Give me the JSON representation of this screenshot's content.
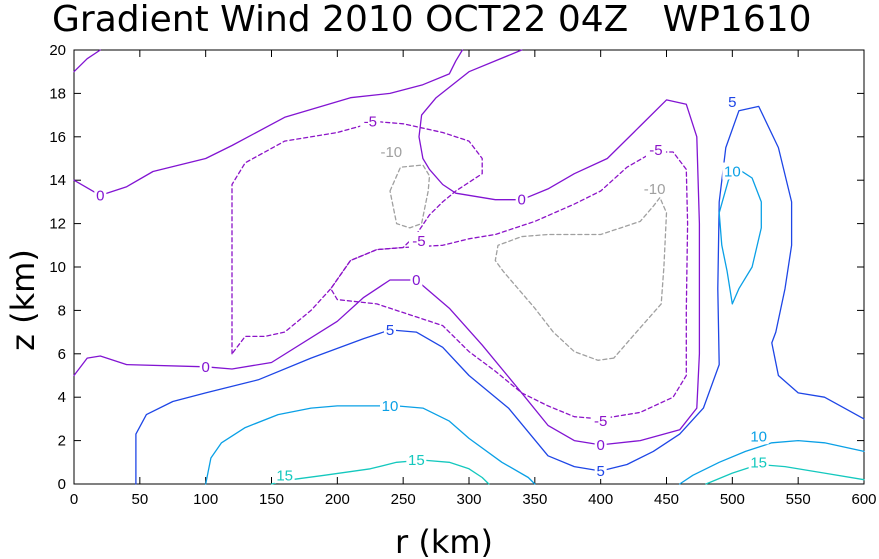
{
  "chart_data": {
    "type": "contour",
    "title": "Gradient Wind 2010 OCT22 04Z   WP1610",
    "xlabel": "r (km)",
    "ylabel": "z (km)",
    "xlim": [
      0,
      600
    ],
    "ylim": [
      0,
      20
    ],
    "xticks": [
      0,
      50,
      100,
      150,
      200,
      250,
      300,
      350,
      400,
      450,
      500,
      550,
      600
    ],
    "yticks": [
      0,
      2,
      4,
      6,
      8,
      10,
      12,
      14,
      16,
      18,
      20
    ],
    "colors": {
      "neg10": "#a0a0a0",
      "neg5": "#8c14c8",
      "zero": "#8214d2",
      "pos5": "#1e46e6",
      "pos10": "#0aa0e6",
      "pos15": "#14c8be"
    },
    "contours": [
      {
        "id": "zero-top-left",
        "level": 0,
        "style": "solid",
        "color": "#8214d2",
        "points": [
          [
            0,
            19
          ],
          [
            10,
            19.6
          ],
          [
            20,
            20
          ]
        ]
      },
      {
        "id": "zero-upper-left",
        "level": 0,
        "style": "solid",
        "color": "#8214d2",
        "points": [
          [
            0,
            14
          ],
          [
            20,
            13.3
          ],
          [
            40,
            13.7
          ],
          [
            60,
            14.4
          ],
          [
            100,
            15
          ],
          [
            120,
            15.6
          ],
          [
            160,
            16.9
          ],
          [
            210,
            17.8
          ],
          [
            240,
            18
          ],
          [
            265,
            18.4
          ],
          [
            285,
            18.9
          ],
          [
            290,
            19.5
          ],
          [
            295,
            20
          ]
        ]
      },
      {
        "id": "zero-lower",
        "level": 0,
        "style": "solid",
        "color": "#8214d2",
        "points": [
          [
            0,
            5
          ],
          [
            10,
            5.8
          ],
          [
            20,
            5.9
          ],
          [
            40,
            5.5
          ],
          [
            100,
            5.4
          ],
          [
            120,
            5.3
          ],
          [
            150,
            5.6
          ],
          [
            200,
            7.5
          ],
          [
            220,
            8.6
          ],
          [
            240,
            9.4
          ],
          [
            260,
            9.4
          ],
          [
            285,
            8.1
          ],
          [
            310,
            6.4
          ],
          [
            340,
            4.2
          ],
          [
            360,
            2.7
          ],
          [
            380,
            2
          ],
          [
            400,
            1.8
          ],
          [
            430,
            2
          ],
          [
            460,
            2.5
          ],
          [
            473,
            3.5
          ],
          [
            475,
            6
          ],
          [
            475,
            12
          ],
          [
            473,
            16
          ],
          [
            465,
            17.5
          ],
          [
            450,
            17.7
          ],
          [
            430,
            16.5
          ],
          [
            405,
            15
          ],
          [
            380,
            14.3
          ],
          [
            360,
            13.6
          ],
          [
            340,
            13.1
          ],
          [
            320,
            13.1
          ],
          [
            290,
            13.4
          ],
          [
            280,
            13.8
          ],
          [
            270,
            14.5
          ],
          [
            265,
            15
          ],
          [
            262,
            16
          ],
          [
            264,
            17
          ],
          [
            275,
            17.8
          ],
          [
            300,
            19
          ],
          [
            320,
            19.5
          ],
          [
            340,
            20
          ]
        ]
      },
      {
        "id": "neg5-upper",
        "level": -5,
        "style": "dashed",
        "color": "#8c14c8",
        "points": [
          [
            120,
            6
          ],
          [
            120,
            13.8
          ],
          [
            130,
            14.8
          ],
          [
            160,
            15.8
          ],
          [
            200,
            16.2
          ],
          [
            230,
            16.7
          ],
          [
            250,
            16.6
          ],
          [
            280,
            16.2
          ],
          [
            300,
            15.8
          ],
          [
            310,
            15
          ],
          [
            310,
            14.3
          ],
          [
            290,
            13.5
          ],
          [
            280,
            13
          ],
          [
            270,
            12.4
          ],
          [
            260,
            11.5
          ],
          [
            250,
            10.9
          ],
          [
            230,
            10.8
          ],
          [
            210,
            10.3
          ],
          [
            195,
            9
          ],
          [
            180,
            8
          ],
          [
            160,
            7
          ],
          [
            145,
            6.8
          ],
          [
            130,
            6.8
          ],
          [
            120,
            6
          ]
        ]
      },
      {
        "id": "neg5-right",
        "level": -5,
        "style": "dashed",
        "color": "#8c14c8",
        "points": [
          [
            400,
            3
          ],
          [
            410,
            3.1
          ],
          [
            430,
            3.3
          ],
          [
            455,
            4
          ],
          [
            465,
            5
          ],
          [
            465,
            8
          ],
          [
            466,
            12
          ],
          [
            465,
            14.5
          ],
          [
            455,
            15.3
          ],
          [
            440,
            15.3
          ],
          [
            420,
            14.6
          ],
          [
            400,
            13.5
          ],
          [
            380,
            12.9
          ],
          [
            350,
            12.1
          ],
          [
            320,
            11.5
          ],
          [
            300,
            11.3
          ],
          [
            280,
            11
          ],
          [
            250,
            10.9
          ],
          [
            230,
            10.8
          ],
          [
            210,
            10.3
          ],
          [
            195,
            9
          ],
          [
            200,
            8.5
          ],
          [
            230,
            8.3
          ],
          [
            280,
            7.3
          ],
          [
            300,
            6.1
          ],
          [
            320,
            5.2
          ],
          [
            340,
            4.2
          ],
          [
            360,
            3.6
          ],
          [
            380,
            3.1
          ],
          [
            400,
            3
          ]
        ]
      },
      {
        "id": "neg10-left",
        "level": -10,
        "style": "dashed",
        "color": "#a0a0a0",
        "points": [
          [
            240,
            13.5
          ],
          [
            248,
            14.6
          ],
          [
            265,
            14.7
          ],
          [
            270,
            14.2
          ],
          [
            269,
            13.5
          ],
          [
            264,
            12
          ],
          [
            255,
            11.8
          ],
          [
            245,
            12
          ],
          [
            240,
            13.5
          ]
        ]
      },
      {
        "id": "neg10-right",
        "level": -10,
        "style": "dashed",
        "color": "#a0a0a0",
        "points": [
          [
            410,
            5.8
          ],
          [
            398,
            5.7
          ],
          [
            380,
            6.1
          ],
          [
            364,
            7
          ],
          [
            350,
            8.1
          ],
          [
            326,
            9.8
          ],
          [
            320,
            10.3
          ],
          [
            322,
            11
          ],
          [
            340,
            11.4
          ],
          [
            360,
            11.5
          ],
          [
            400,
            11.5
          ],
          [
            430,
            12.1
          ],
          [
            440,
            12.8
          ],
          [
            445,
            13.2
          ],
          [
            450,
            12.5
          ],
          [
            448,
            10
          ],
          [
            446,
            8.3
          ],
          [
            430,
            7.2
          ],
          [
            420,
            6.5
          ],
          [
            410,
            5.8
          ]
        ]
      },
      {
        "id": "pos5-lower",
        "level": 5,
        "style": "solid",
        "color": "#1e46e6",
        "points": [
          [
            47,
            0
          ],
          [
            47,
            2.3
          ],
          [
            55,
            3.2
          ],
          [
            75,
            3.8
          ],
          [
            100,
            4.2
          ],
          [
            140,
            4.8
          ],
          [
            180,
            5.8
          ],
          [
            220,
            6.7
          ],
          [
            240,
            7.1
          ],
          [
            260,
            7
          ],
          [
            280,
            6.3
          ],
          [
            300,
            5
          ],
          [
            330,
            3.5
          ],
          [
            360,
            1.3
          ],
          [
            380,
            0.8
          ],
          [
            400,
            0.6
          ],
          [
            420,
            0.9
          ],
          [
            440,
            1.5
          ],
          [
            460,
            2.3
          ],
          [
            478,
            3.5
          ],
          [
            490,
            5.5
          ],
          [
            489,
            9
          ],
          [
            490,
            13
          ],
          [
            495,
            15.5
          ],
          [
            505,
            17.2
          ],
          [
            520,
            17.4
          ],
          [
            535,
            15.5
          ],
          [
            545,
            13
          ],
          [
            545,
            11
          ],
          [
            540,
            9
          ],
          [
            533,
            7
          ],
          [
            530,
            6.5
          ],
          [
            535,
            5
          ],
          [
            550,
            4.2
          ],
          [
            570,
            4
          ],
          [
            585,
            3.5
          ],
          [
            600,
            3
          ]
        ]
      },
      {
        "id": "pos10-lower",
        "level": 10,
        "style": "solid",
        "color": "#0aa0e6",
        "points": [
          [
            100,
            0
          ],
          [
            104,
            1.2
          ],
          [
            112,
            1.9
          ],
          [
            130,
            2.6
          ],
          [
            155,
            3.2
          ],
          [
            180,
            3.5
          ],
          [
            200,
            3.6
          ],
          [
            220,
            3.6
          ],
          [
            245,
            3.6
          ],
          [
            265,
            3.5
          ],
          [
            285,
            2.9
          ],
          [
            300,
            2.1
          ],
          [
            325,
            1
          ],
          [
            345,
            0.3
          ],
          [
            350,
            0
          ]
        ]
      },
      {
        "id": "pos10-right-top",
        "level": 10,
        "style": "solid",
        "color": "#0aa0e6",
        "points": [
          [
            500,
            8.3
          ],
          [
            505,
            9
          ],
          [
            515,
            10
          ],
          [
            522,
            11.8
          ],
          [
            522,
            13
          ],
          [
            515,
            14.1
          ],
          [
            505,
            14.5
          ],
          [
            497,
            14
          ],
          [
            490,
            12.5
          ],
          [
            492,
            11
          ],
          [
            496,
            9.8
          ],
          [
            500,
            8.3
          ]
        ]
      },
      {
        "id": "pos10-right-bottom",
        "level": 10,
        "style": "solid",
        "color": "#0aa0e6",
        "points": [
          [
            460,
            0
          ],
          [
            470,
            0.4
          ],
          [
            490,
            1
          ],
          [
            510,
            1.5
          ],
          [
            530,
            1.9
          ],
          [
            550,
            2
          ],
          [
            570,
            1.9
          ],
          [
            600,
            1.5
          ]
        ]
      },
      {
        "id": "pos15-lower",
        "level": 15,
        "style": "solid",
        "color": "#14c8be",
        "points": [
          [
            150,
            0
          ],
          [
            165,
            0.2
          ],
          [
            190,
            0.4
          ],
          [
            225,
            0.7
          ],
          [
            245,
            1
          ],
          [
            265,
            1.1
          ],
          [
            285,
            1
          ],
          [
            300,
            0.7
          ],
          [
            310,
            0.3
          ],
          [
            315,
            0
          ]
        ]
      },
      {
        "id": "pos15-right",
        "level": 15,
        "style": "solid",
        "color": "#14c8be",
        "points": [
          [
            480,
            0
          ],
          [
            500,
            0.5
          ],
          [
            520,
            0.9
          ],
          [
            540,
            0.8
          ],
          [
            570,
            0.5
          ],
          [
            600,
            0.2
          ]
        ]
      }
    ],
    "contour_labels": [
      {
        "text": "0",
        "x": 20,
        "y": 13.3,
        "color": "#8214d2"
      },
      {
        "text": "0",
        "x": 100,
        "y": 5.4,
        "color": "#8214d2"
      },
      {
        "text": "0",
        "x": 260,
        "y": 9.4,
        "color": "#8214d2"
      },
      {
        "text": "0",
        "x": 340,
        "y": 13.1,
        "color": "#8214d2"
      },
      {
        "text": "0",
        "x": 400,
        "y": 1.8,
        "color": "#8214d2"
      },
      {
        "text": "-5",
        "x": 225,
        "y": 16.7,
        "color": "#8c14c8"
      },
      {
        "text": "-5",
        "x": 262,
        "y": 11.2,
        "color": "#8c14c8"
      },
      {
        "text": "-5",
        "x": 442,
        "y": 15.4,
        "color": "#8c14c8"
      },
      {
        "text": "-5",
        "x": 400,
        "y": 2.9,
        "color": "#8c14c8"
      },
      {
        "text": "-10",
        "x": 241,
        "y": 15.3,
        "color": "#a0a0a0"
      },
      {
        "text": "-10",
        "x": 441,
        "y": 13.6,
        "color": "#a0a0a0"
      },
      {
        "text": "5",
        "x": 240,
        "y": 7.1,
        "color": "#1e46e6"
      },
      {
        "text": "5",
        "x": 400,
        "y": 0.6,
        "color": "#1e46e6"
      },
      {
        "text": "5",
        "x": 500,
        "y": 17.6,
        "color": "#1e46e6"
      },
      {
        "text": "10",
        "x": 240,
        "y": 3.6,
        "color": "#0aa0e6"
      },
      {
        "text": "10",
        "x": 500,
        "y": 14.4,
        "color": "#0aa0e6"
      },
      {
        "text": "10",
        "x": 520,
        "y": 2.2,
        "color": "#0aa0e6"
      },
      {
        "text": "15",
        "x": 160,
        "y": 0.4,
        "color": "#14c8be"
      },
      {
        "text": "15",
        "x": 260,
        "y": 1.1,
        "color": "#14c8be"
      },
      {
        "text": "15",
        "x": 520,
        "y": 1.0,
        "color": "#14c8be"
      }
    ]
  }
}
